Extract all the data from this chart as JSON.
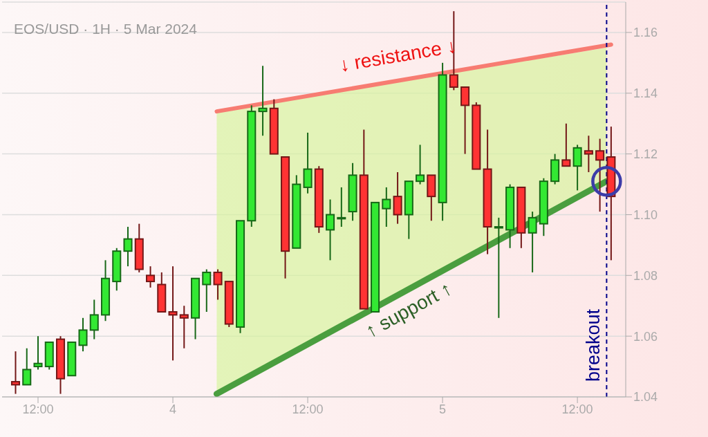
{
  "chart_data": {
    "type": "candlestick",
    "title": "EOS/USD · 1H · 5 Mar 2024",
    "x": [
      "2024-03-03T10:00",
      "2024-03-03T11:00",
      "2024-03-03T12:00",
      "2024-03-03T13:00",
      "2024-03-03T14:00",
      "2024-03-03T15:00",
      "2024-03-03T16:00",
      "2024-03-03T17:00",
      "2024-03-03T18:00",
      "2024-03-03T19:00",
      "2024-03-03T20:00",
      "2024-03-03T21:00",
      "2024-03-03T22:00",
      "2024-03-03T23:00",
      "2024-03-04T00:00",
      "2024-03-04T01:00",
      "2024-03-04T02:00",
      "2024-03-04T03:00",
      "2024-03-04T04:00",
      "2024-03-04T05:00",
      "2024-03-04T06:00",
      "2024-03-04T07:00",
      "2024-03-04T08:00",
      "2024-03-04T09:00",
      "2024-03-04T10:00",
      "2024-03-04T11:00",
      "2024-03-04T12:00",
      "2024-03-04T13:00",
      "2024-03-04T14:00",
      "2024-03-04T15:00",
      "2024-03-04T16:00",
      "2024-03-04T17:00",
      "2024-03-04T18:00",
      "2024-03-04T19:00",
      "2024-03-04T20:00",
      "2024-03-04T21:00",
      "2024-03-04T22:00",
      "2024-03-04T23:00",
      "2024-03-05T00:00",
      "2024-03-05T01:00",
      "2024-03-05T02:00",
      "2024-03-05T03:00",
      "2024-03-05T04:00",
      "2024-03-05T05:00",
      "2024-03-05T06:00",
      "2024-03-05T07:00",
      "2024-03-05T08:00",
      "2024-03-05T09:00",
      "2024-03-05T10:00",
      "2024-03-05T11:00",
      "2024-03-05T12:00",
      "2024-03-05T13:00",
      "2024-03-05T14:00",
      "2024-03-05T15:00"
    ],
    "ohlc": [
      [
        1.045,
        1.055,
        1.041,
        1.044
      ],
      [
        1.044,
        1.056,
        1.044,
        1.049
      ],
      [
        1.05,
        1.06,
        1.049,
        1.051
      ],
      [
        1.05,
        1.058,
        1.049,
        1.058
      ],
      [
        1.059,
        1.06,
        1.041,
        1.046
      ],
      [
        1.047,
        1.058,
        1.047,
        1.058
      ],
      [
        1.057,
        1.066,
        1.055,
        1.062
      ],
      [
        1.062,
        1.072,
        1.059,
        1.067
      ],
      [
        1.067,
        1.085,
        1.065,
        1.079
      ],
      [
        1.078,
        1.089,
        1.075,
        1.088
      ],
      [
        1.088,
        1.096,
        1.083,
        1.092
      ],
      [
        1.092,
        1.097,
        1.081,
        1.082
      ],
      [
        1.08,
        1.083,
        1.076,
        1.078
      ],
      [
        1.077,
        1.081,
        1.068,
        1.068
      ],
      [
        1.068,
        1.083,
        1.052,
        1.067
      ],
      [
        1.067,
        1.07,
        1.056,
        1.066
      ],
      [
        1.066,
        1.079,
        1.059,
        1.079
      ],
      [
        1.077,
        1.082,
        1.068,
        1.081
      ],
      [
        1.081,
        1.082,
        1.072,
        1.077
      ],
      [
        1.078,
        1.078,
        1.063,
        1.064
      ],
      [
        1.063,
        1.098,
        1.061,
        1.098
      ],
      [
        1.098,
        1.136,
        1.096,
        1.134
      ],
      [
        1.134,
        1.149,
        1.126,
        1.135
      ],
      [
        1.135,
        1.138,
        1.12,
        1.12
      ],
      [
        1.119,
        1.119,
        1.079,
        1.088
      ],
      [
        1.089,
        1.113,
        1.089,
        1.11
      ],
      [
        1.109,
        1.127,
        1.107,
        1.115
      ],
      [
        1.115,
        1.116,
        1.094,
        1.096
      ],
      [
        1.095,
        1.105,
        1.085,
        1.1
      ],
      [
        1.099,
        1.109,
        1.096,
        1.099
      ],
      [
        1.101,
        1.117,
        1.098,
        1.113
      ],
      [
        1.113,
        1.128,
        1.069,
        1.069
      ],
      [
        1.068,
        1.104,
        1.068,
        1.104
      ],
      [
        1.102,
        1.109,
        1.096,
        1.105
      ],
      [
        1.106,
        1.114,
        1.097,
        1.1
      ],
      [
        1.1,
        1.111,
        1.092,
        1.111
      ],
      [
        1.111,
        1.123,
        1.11,
        1.113
      ],
      [
        1.113,
        1.113,
        1.098,
        1.106
      ],
      [
        1.104,
        1.15,
        1.098,
        1.146
      ],
      [
        1.146,
        1.167,
        1.141,
        1.142
      ],
      [
        1.142,
        1.142,
        1.12,
        1.136
      ],
      [
        1.136,
        1.137,
        1.115,
        1.115
      ],
      [
        1.115,
        1.128,
        1.087,
        1.096
      ],
      [
        1.096,
        1.099,
        1.066,
        1.096
      ],
      [
        1.095,
        1.11,
        1.089,
        1.109
      ],
      [
        1.109,
        1.109,
        1.089,
        1.094
      ],
      [
        1.094,
        1.101,
        1.081,
        1.099
      ],
      [
        1.097,
        1.112,
        1.093,
        1.111
      ],
      [
        1.111,
        1.12,
        1.11,
        1.118
      ],
      [
        1.118,
        1.13,
        1.116,
        1.116
      ],
      [
        1.116,
        1.123,
        1.108,
        1.122
      ],
      [
        1.121,
        1.126,
        1.114,
        1.12
      ],
      [
        1.121,
        1.125,
        1.101,
        1.118
      ],
      [
        1.119,
        1.129,
        1.085,
        1.106
      ]
    ],
    "colors": [
      "#ff3333",
      "#33e833",
      "#33e833",
      "#33e833",
      "#ff3333",
      "#33e833",
      "#33e833",
      "#33e833",
      "#33e833",
      "#33e833",
      "#33e833",
      "#ff3333",
      "#ff3333",
      "#ff3333",
      "#ff3333",
      "#ff3333",
      "#33e833",
      "#33e833",
      "#ff3333",
      "#ff3333",
      "#33e833",
      "#33e833",
      "#33e833",
      "#ff3333",
      "#ff3333",
      "#33e833",
      "#33e833",
      "#ff3333",
      "#33e833",
      "#33e833",
      "#33e833",
      "#ff3333",
      "#33e833",
      "#33e833",
      "#ff3333",
      "#33e833",
      "#33e833",
      "#ff3333",
      "#33e833",
      "#ff3333",
      "#ff3333",
      "#ff3333",
      "#ff3333",
      "#33e833",
      "#33e833",
      "#ff3333",
      "#33e833",
      "#33e833",
      "#33e833",
      "#ff3333",
      "#33e833",
      "#ff3333",
      "#ff3333",
      "#ff3333"
    ],
    "series": [
      {
        "type": "line",
        "color": "#f77c72",
        "x": [
          "2024-03-04T03:54",
          "2024-03-05T15:00"
        ],
        "values": [
          1.134,
          1.156
        ]
      },
      {
        "type": "line",
        "color": "#4a9e3f",
        "x": [
          "2024-03-04T03:54",
          "2024-03-05T14:36"
        ],
        "values": [
          1.041,
          1.111
        ],
        "lower": [
          1.041,
          1.111
        ],
        "upper": [
          1.134,
          1.155
        ]
      }
    ],
    "annotations": [
      "↓ resistance ↓",
      "↑ support ↑"
    ],
    "ref_lines": [
      {
        "axis": "x",
        "value": "2024-03-05T14:36",
        "label": "breakout",
        "color": "#00008b",
        "line_style": "dashed"
      }
    ],
    "xlim": [
      "2024-03-03T08:48",
      "2024-03-05T16:18"
    ],
    "xticks": [
      {
        "value": "2024-03-03T12:00",
        "label": "12:00"
      },
      {
        "value": "2024-03-04",
        "label": "4"
      },
      {
        "value": "2024-03-04T12:00",
        "label": "12:00"
      },
      {
        "value": "2024-03-05",
        "label": "5"
      },
      {
        "value": "2024-03-05T12:00",
        "label": "12:00"
      }
    ],
    "ylim": [
      1.04,
      1.17
    ],
    "yticks": [
      1.04,
      1.06,
      1.08,
      {
        "value": 1.1,
        "label": "1.10"
      },
      1.12,
      1.14,
      1.16
    ],
    "grid": "y"
  }
}
